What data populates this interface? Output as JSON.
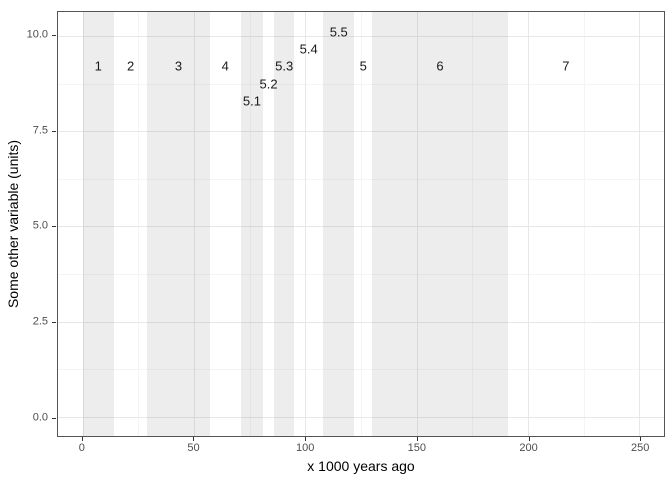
{
  "chart_data": {
    "type": "area",
    "title": "",
    "xlabel": "x 1000 years ago",
    "ylabel": "Some other variable (units)",
    "xlim": [
      -11.1,
      261.1
    ],
    "ylim": [
      -0.5,
      10.63
    ],
    "x_ticks": [
      0,
      50,
      100,
      150,
      200,
      250
    ],
    "x_tick_labels": [
      "0",
      "50",
      "100",
      "150",
      "200",
      "250"
    ],
    "x_minor_ticks": [
      25,
      75,
      125,
      175,
      225
    ],
    "y_ticks": [
      0,
      2.5,
      5,
      7.5,
      10
    ],
    "y_tick_labels": [
      "0.0",
      "2.5",
      "5.0",
      "7.5",
      "10.0"
    ],
    "y_minor_ticks": [
      1.25,
      3.75,
      6.25,
      8.75
    ],
    "grid": "on",
    "legend": "none",
    "series": [],
    "marine_isotope_stages": [
      {
        "stage": "1",
        "start": 0,
        "end": 14,
        "shaded": true,
        "label_x": 7,
        "label_y": 9.2
      },
      {
        "stage": "2",
        "start": 14,
        "end": 29,
        "shaded": false,
        "label_x": 21.5,
        "label_y": 9.2
      },
      {
        "stage": "3",
        "start": 29,
        "end": 57,
        "shaded": true,
        "label_x": 43,
        "label_y": 9.2
      },
      {
        "stage": "4",
        "start": 57,
        "end": 71,
        "shaded": false,
        "label_x": 64,
        "label_y": 9.2
      },
      {
        "stage": "5.1",
        "start": 71,
        "end": 81,
        "shaded": true,
        "label_x": 76,
        "label_y": 8.3
      },
      {
        "stage": "5.2",
        "start": 81,
        "end": 86,
        "shaded": false,
        "label_x": 83.5,
        "label_y": 8.75
      },
      {
        "stage": "5.3",
        "start": 86,
        "end": 95,
        "shaded": true,
        "label_x": 90.5,
        "label_y": 9.2
      },
      {
        "stage": "5.4",
        "start": 95,
        "end": 108,
        "shaded": false,
        "label_x": 101.5,
        "label_y": 9.65
      },
      {
        "stage": "5.5",
        "start": 108,
        "end": 122,
        "shaded": true,
        "label_x": 115,
        "label_y": 10.1
      },
      {
        "stage": "5",
        "start": 122,
        "end": 130,
        "shaded": false,
        "label_x": 126,
        "label_y": 9.2
      },
      {
        "stage": "6",
        "start": 130,
        "end": 191,
        "shaded": true,
        "label_x": 160.5,
        "label_y": 9.2
      },
      {
        "stage": "7",
        "start": 191,
        "end": 243,
        "shaded": false,
        "label_x": 217,
        "label_y": 9.2
      }
    ]
  },
  "colors": {
    "background": "#ffffff",
    "panel_border": "#545454",
    "grid_major": "#e7e7e7",
    "grid_minor": "#f4f4f4",
    "band_fill": "#ececec",
    "stage_label": "#1a1a1a",
    "tick_label": "#4d4d4d",
    "axis_title": "#000000"
  }
}
